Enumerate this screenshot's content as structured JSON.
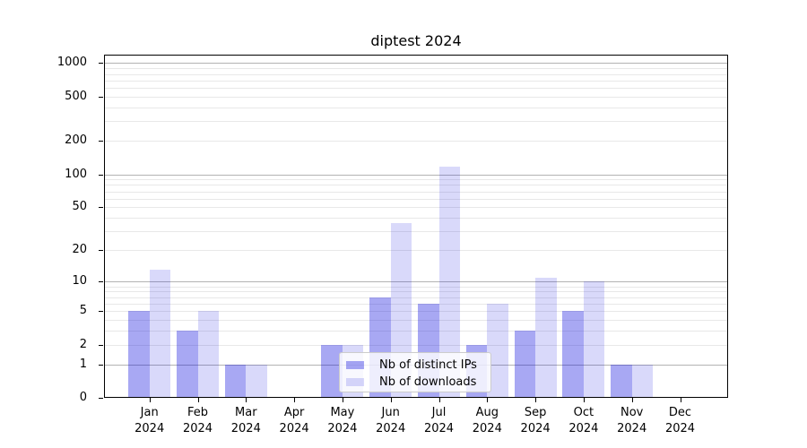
{
  "title": "diptest 2024",
  "legend": {
    "items": [
      {
        "label": "Nb of distinct IPs",
        "color": "rgba(0,0,220,0.34)"
      },
      {
        "label": "Nb of downloads",
        "color": "rgba(0,0,220,0.15)"
      }
    ]
  },
  "colors": {
    "bar_distinct_ips": "rgba(0,0,220,0.34)",
    "bar_downloads": "rgba(0,0,220,0.15)",
    "gridline_major": "#b3b3b3",
    "gridline_minor": "#e8e8e8",
    "axis": "#000000"
  },
  "chart_data": {
    "type": "bar",
    "title": "diptest 2024",
    "xlabel": "",
    "ylabel": "",
    "yscale": "log(1+v)",
    "ylim": [
      0,
      1240
    ],
    "grid": "major+minor horizontal",
    "legend_position": "bottom-center-inside",
    "categories": [
      "Jan",
      "Feb",
      "Mar",
      "Apr",
      "May",
      "Jun",
      "Jul",
      "Aug",
      "Sep",
      "Oct",
      "Nov",
      "Dec"
    ],
    "year": "2024",
    "yticks": [
      0,
      1,
      2,
      5,
      10,
      20,
      50,
      100,
      200,
      500,
      1000
    ],
    "series": [
      {
        "name": "Nb of distinct IPs",
        "values": [
          5,
          3,
          1,
          0,
          2,
          7,
          6,
          2,
          3,
          5,
          1,
          0
        ]
      },
      {
        "name": "Nb of downloads",
        "values": [
          13,
          5,
          1,
          0,
          2,
          36,
          118,
          6,
          11,
          10,
          1,
          0
        ]
      }
    ]
  }
}
